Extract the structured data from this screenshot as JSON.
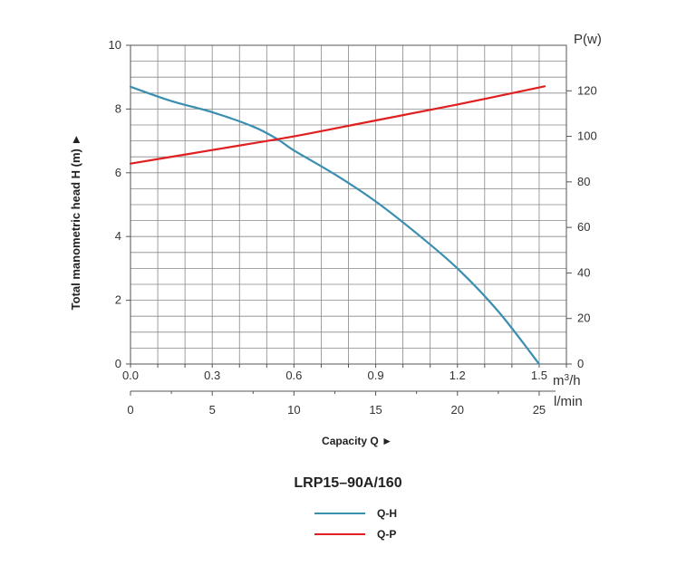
{
  "chart_data": {
    "type": "line",
    "title": "LRP15–90A/160",
    "xlabel": "Capacity Q ►",
    "ylabel_left": "Total manometric head H (m) ►",
    "ylabel_right": "P(w)",
    "x_units_primary": "m³/h",
    "x_units_secondary": "l/min",
    "x_ticks_primary": [
      "0.0",
      "0.3",
      "0.6",
      "0.9",
      "1.2",
      "1.5"
    ],
    "x_ticks_secondary": [
      "0",
      "5",
      "10",
      "15",
      "20",
      "25"
    ],
    "y_left_ticks": [
      "0",
      "2",
      "4",
      "6",
      "8",
      "10"
    ],
    "y_right_ticks": [
      "0",
      "20",
      "40",
      "60",
      "80",
      "100",
      "120"
    ],
    "xlim": [
      0,
      1.6
    ],
    "ylim_left": [
      0,
      10
    ],
    "ylim_right": [
      0,
      140
    ],
    "grid": true,
    "legend_position": "bottom-center",
    "series": [
      {
        "name": "Q-H",
        "axis": "left",
        "color": "#3a8fb0",
        "x": [
          0.0,
          0.15,
          0.3,
          0.45,
          0.54,
          0.6,
          0.75,
          0.9,
          1.05,
          1.2,
          1.35,
          1.5
        ],
        "y": [
          8.7,
          8.25,
          7.9,
          7.45,
          7.05,
          6.7,
          5.95,
          5.1,
          4.1,
          3.0,
          1.65,
          0.0
        ]
      },
      {
        "name": "Q-P",
        "axis": "right",
        "color": "#e02020",
        "x": [
          0.0,
          0.3,
          0.6,
          0.9,
          1.2,
          1.52
        ],
        "y": [
          88,
          94,
          100,
          107,
          114,
          122
        ]
      }
    ]
  }
}
